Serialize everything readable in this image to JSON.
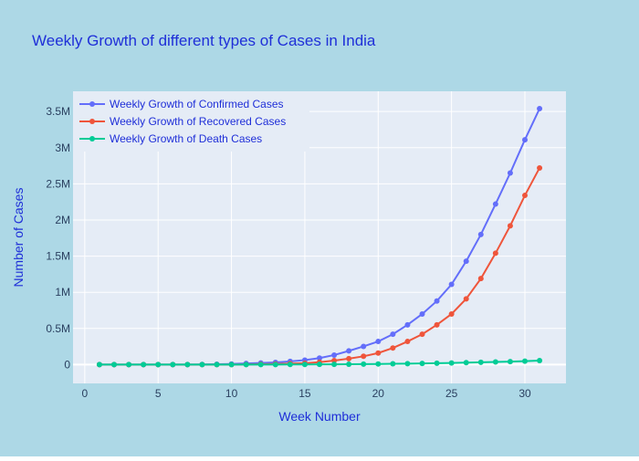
{
  "colors": {
    "paper": "#add8e6",
    "plot_bg": "#e5ecf6",
    "grid": "#ffffff",
    "text": "#2a3f5f",
    "title_text": "#1f2fd8"
  },
  "chart_data": {
    "type": "line",
    "title": "Weekly Growth of different types of Cases in India",
    "xlabel": "Week Number",
    "ylabel": "Number of Cases",
    "xlim": [
      -0.8,
      32.8
    ],
    "ylim": [
      -260000,
      3780000
    ],
    "xticks": [
      0,
      5,
      10,
      15,
      20,
      25,
      30
    ],
    "xtick_labels": [
      "0",
      "5",
      "10",
      "15",
      "20",
      "25",
      "30"
    ],
    "yticks": [
      0,
      500000,
      1000000,
      1500000,
      2000000,
      2500000,
      3000000,
      3500000
    ],
    "ytick_labels": [
      "0",
      "0.5M",
      "1M",
      "1.5M",
      "2M",
      "2.5M",
      "3M",
      "3.5M"
    ],
    "grid": true,
    "legend_position": "top-left",
    "x": [
      1,
      2,
      3,
      4,
      5,
      6,
      7,
      8,
      9,
      10,
      11,
      12,
      13,
      14,
      15,
      16,
      17,
      18,
      19,
      20,
      21,
      22,
      23,
      24,
      25,
      26,
      27,
      28,
      29,
      30,
      31
    ],
    "series": [
      {
        "name": "Weekly Growth of Confirmed Cases",
        "color": "#636efa",
        "values": [
          3,
          3,
          3,
          30,
          100,
          250,
          900,
          2500,
          5000,
          9000,
          16000,
          23000,
          31000,
          44000,
          62000,
          90000,
          132000,
          190000,
          252000,
          320000,
          420000,
          550000,
          700000,
          880000,
          1110000,
          1430000,
          1800000,
          2220000,
          2650000,
          3110000,
          3540000
        ]
      },
      {
        "name": "Weekly Growth of Recovered Cases",
        "color": "#ef553b",
        "values": [
          0,
          0,
          0,
          3,
          10,
          20,
          70,
          200,
          500,
          1000,
          2500,
          5000,
          9000,
          14000,
          20000,
          34000,
          55000,
          82000,
          115000,
          160000,
          230000,
          320000,
          420000,
          550000,
          700000,
          910000,
          1190000,
          1540000,
          1920000,
          2340000,
          2720000
        ]
      },
      {
        "name": "Weekly Growth of Death Cases",
        "color": "#00cc96",
        "values": [
          0,
          0,
          0,
          0,
          2,
          5,
          20,
          80,
          150,
          300,
          500,
          800,
          1000,
          1500,
          2000,
          3000,
          4000,
          5500,
          7000,
          9000,
          11000,
          13500,
          16000,
          19000,
          23000,
          27000,
          32000,
          37000,
          42000,
          48000,
          56000
        ]
      }
    ]
  }
}
